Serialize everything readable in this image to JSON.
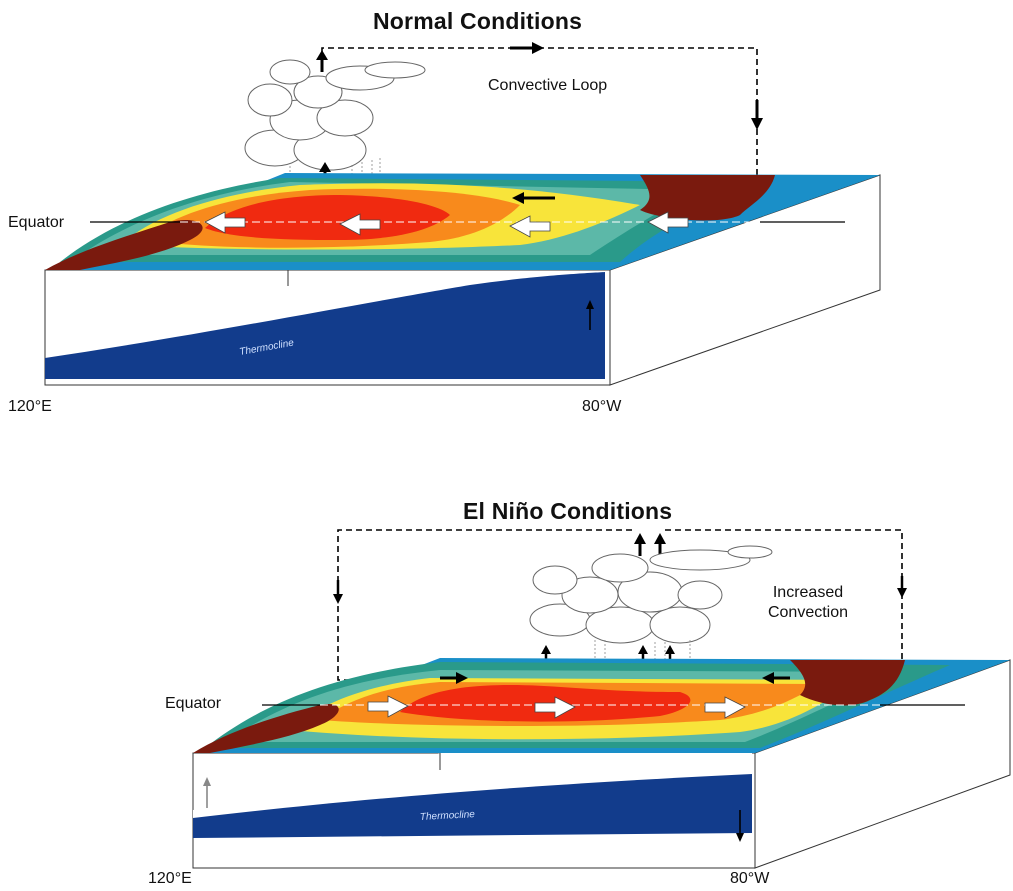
{
  "normal": {
    "title": "Normal Conditions",
    "loop_label": "Convective Loop",
    "equator_label": "Equator",
    "thermocline_label": "Thermocline",
    "lon_west": "120°E",
    "lon_east": "80°W"
  },
  "elnino": {
    "title": "El Niño Conditions",
    "convection_label_line1": "Increased",
    "convection_label_line2": "Convection",
    "equator_label": "Equator",
    "thermocline_label": "Thermocline",
    "lon_west": "120°E",
    "lon_east": "80°W"
  },
  "colors": {
    "warm_core": "#f02a10",
    "warm": "#f88a1c",
    "mid": "#f8e43a",
    "teal": "#2a9a8a",
    "teal_light": "#5cb8a8",
    "cold": "#1a8fc8",
    "land": "#7a1a0e",
    "deep_ocean": "#123c8c",
    "arrow_wind": "#ffffff"
  }
}
